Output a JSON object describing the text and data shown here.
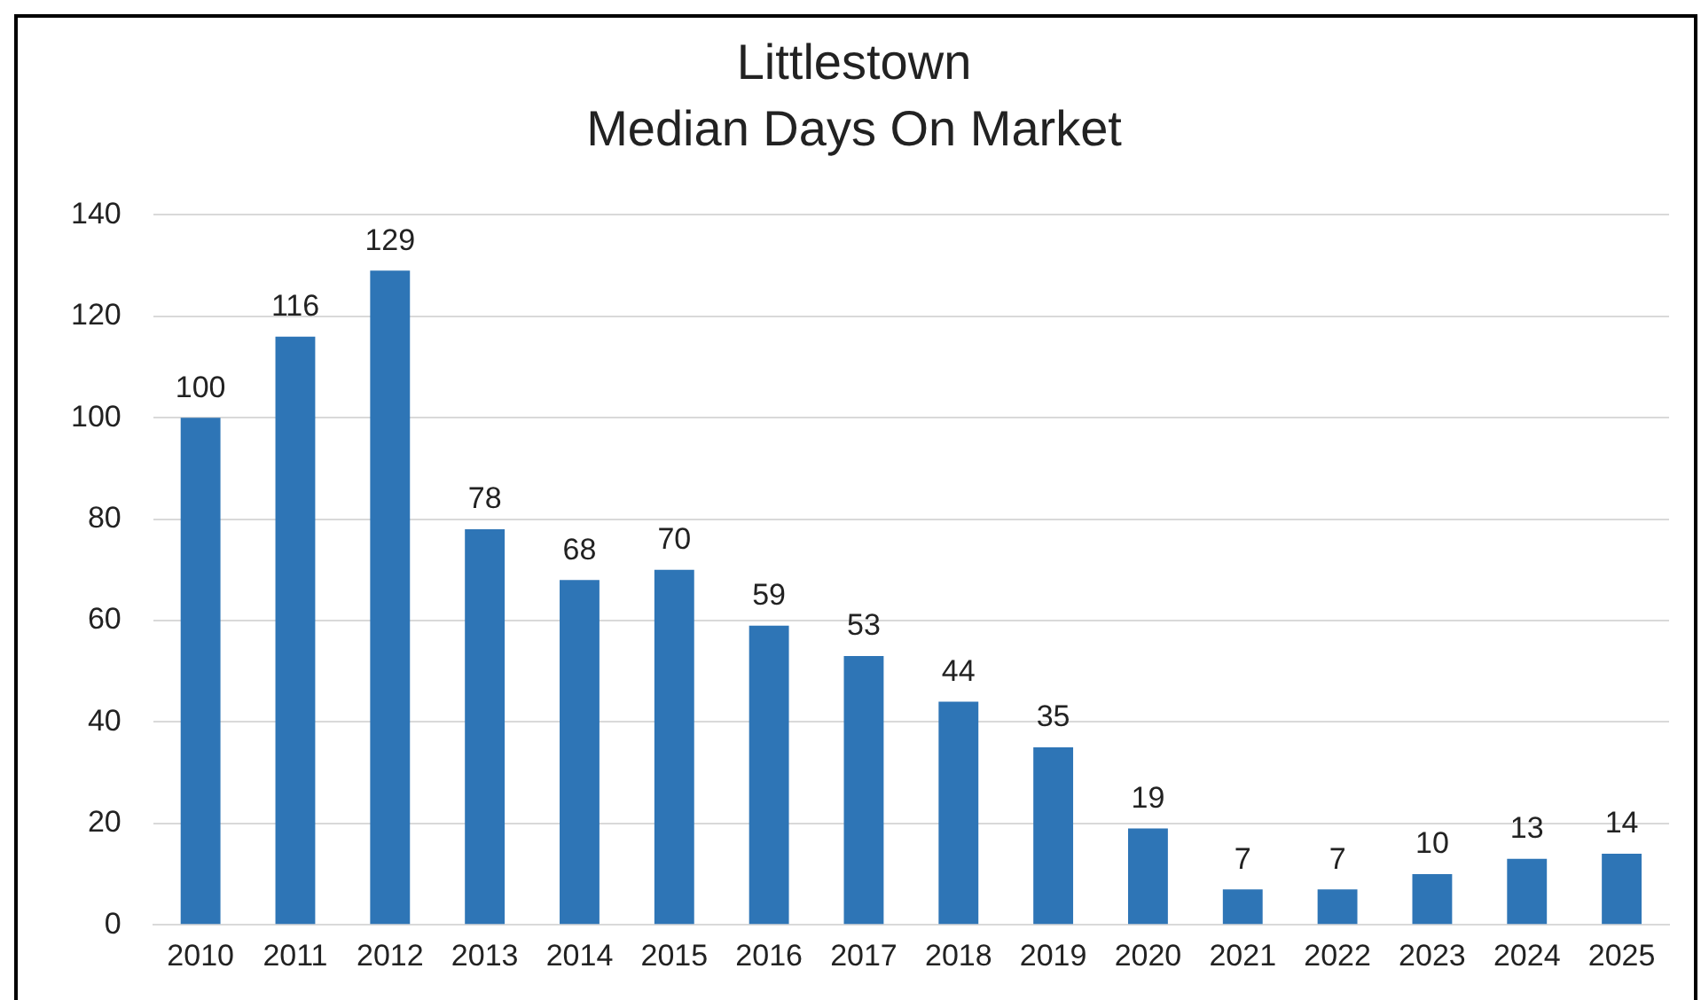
{
  "chart_data": {
    "type": "bar",
    "title": "Littlestown",
    "subtitle": "Median Days On Market",
    "categories": [
      "2010",
      "2011",
      "2012",
      "2013",
      "2014",
      "2015",
      "2016",
      "2017",
      "2018",
      "2019",
      "2020",
      "2021",
      "2022",
      "2023",
      "2024",
      "2025"
    ],
    "values": [
      100,
      116,
      129,
      78,
      68,
      70,
      59,
      53,
      44,
      35,
      19,
      7,
      7,
      10,
      13,
      14
    ],
    "color": "#2e75b6",
    "ylim": [
      0,
      140
    ],
    "yticks": [
      0,
      20,
      40,
      60,
      80,
      100,
      120,
      140
    ],
    "grid": "y",
    "data_labels": true,
    "legend": false
  }
}
